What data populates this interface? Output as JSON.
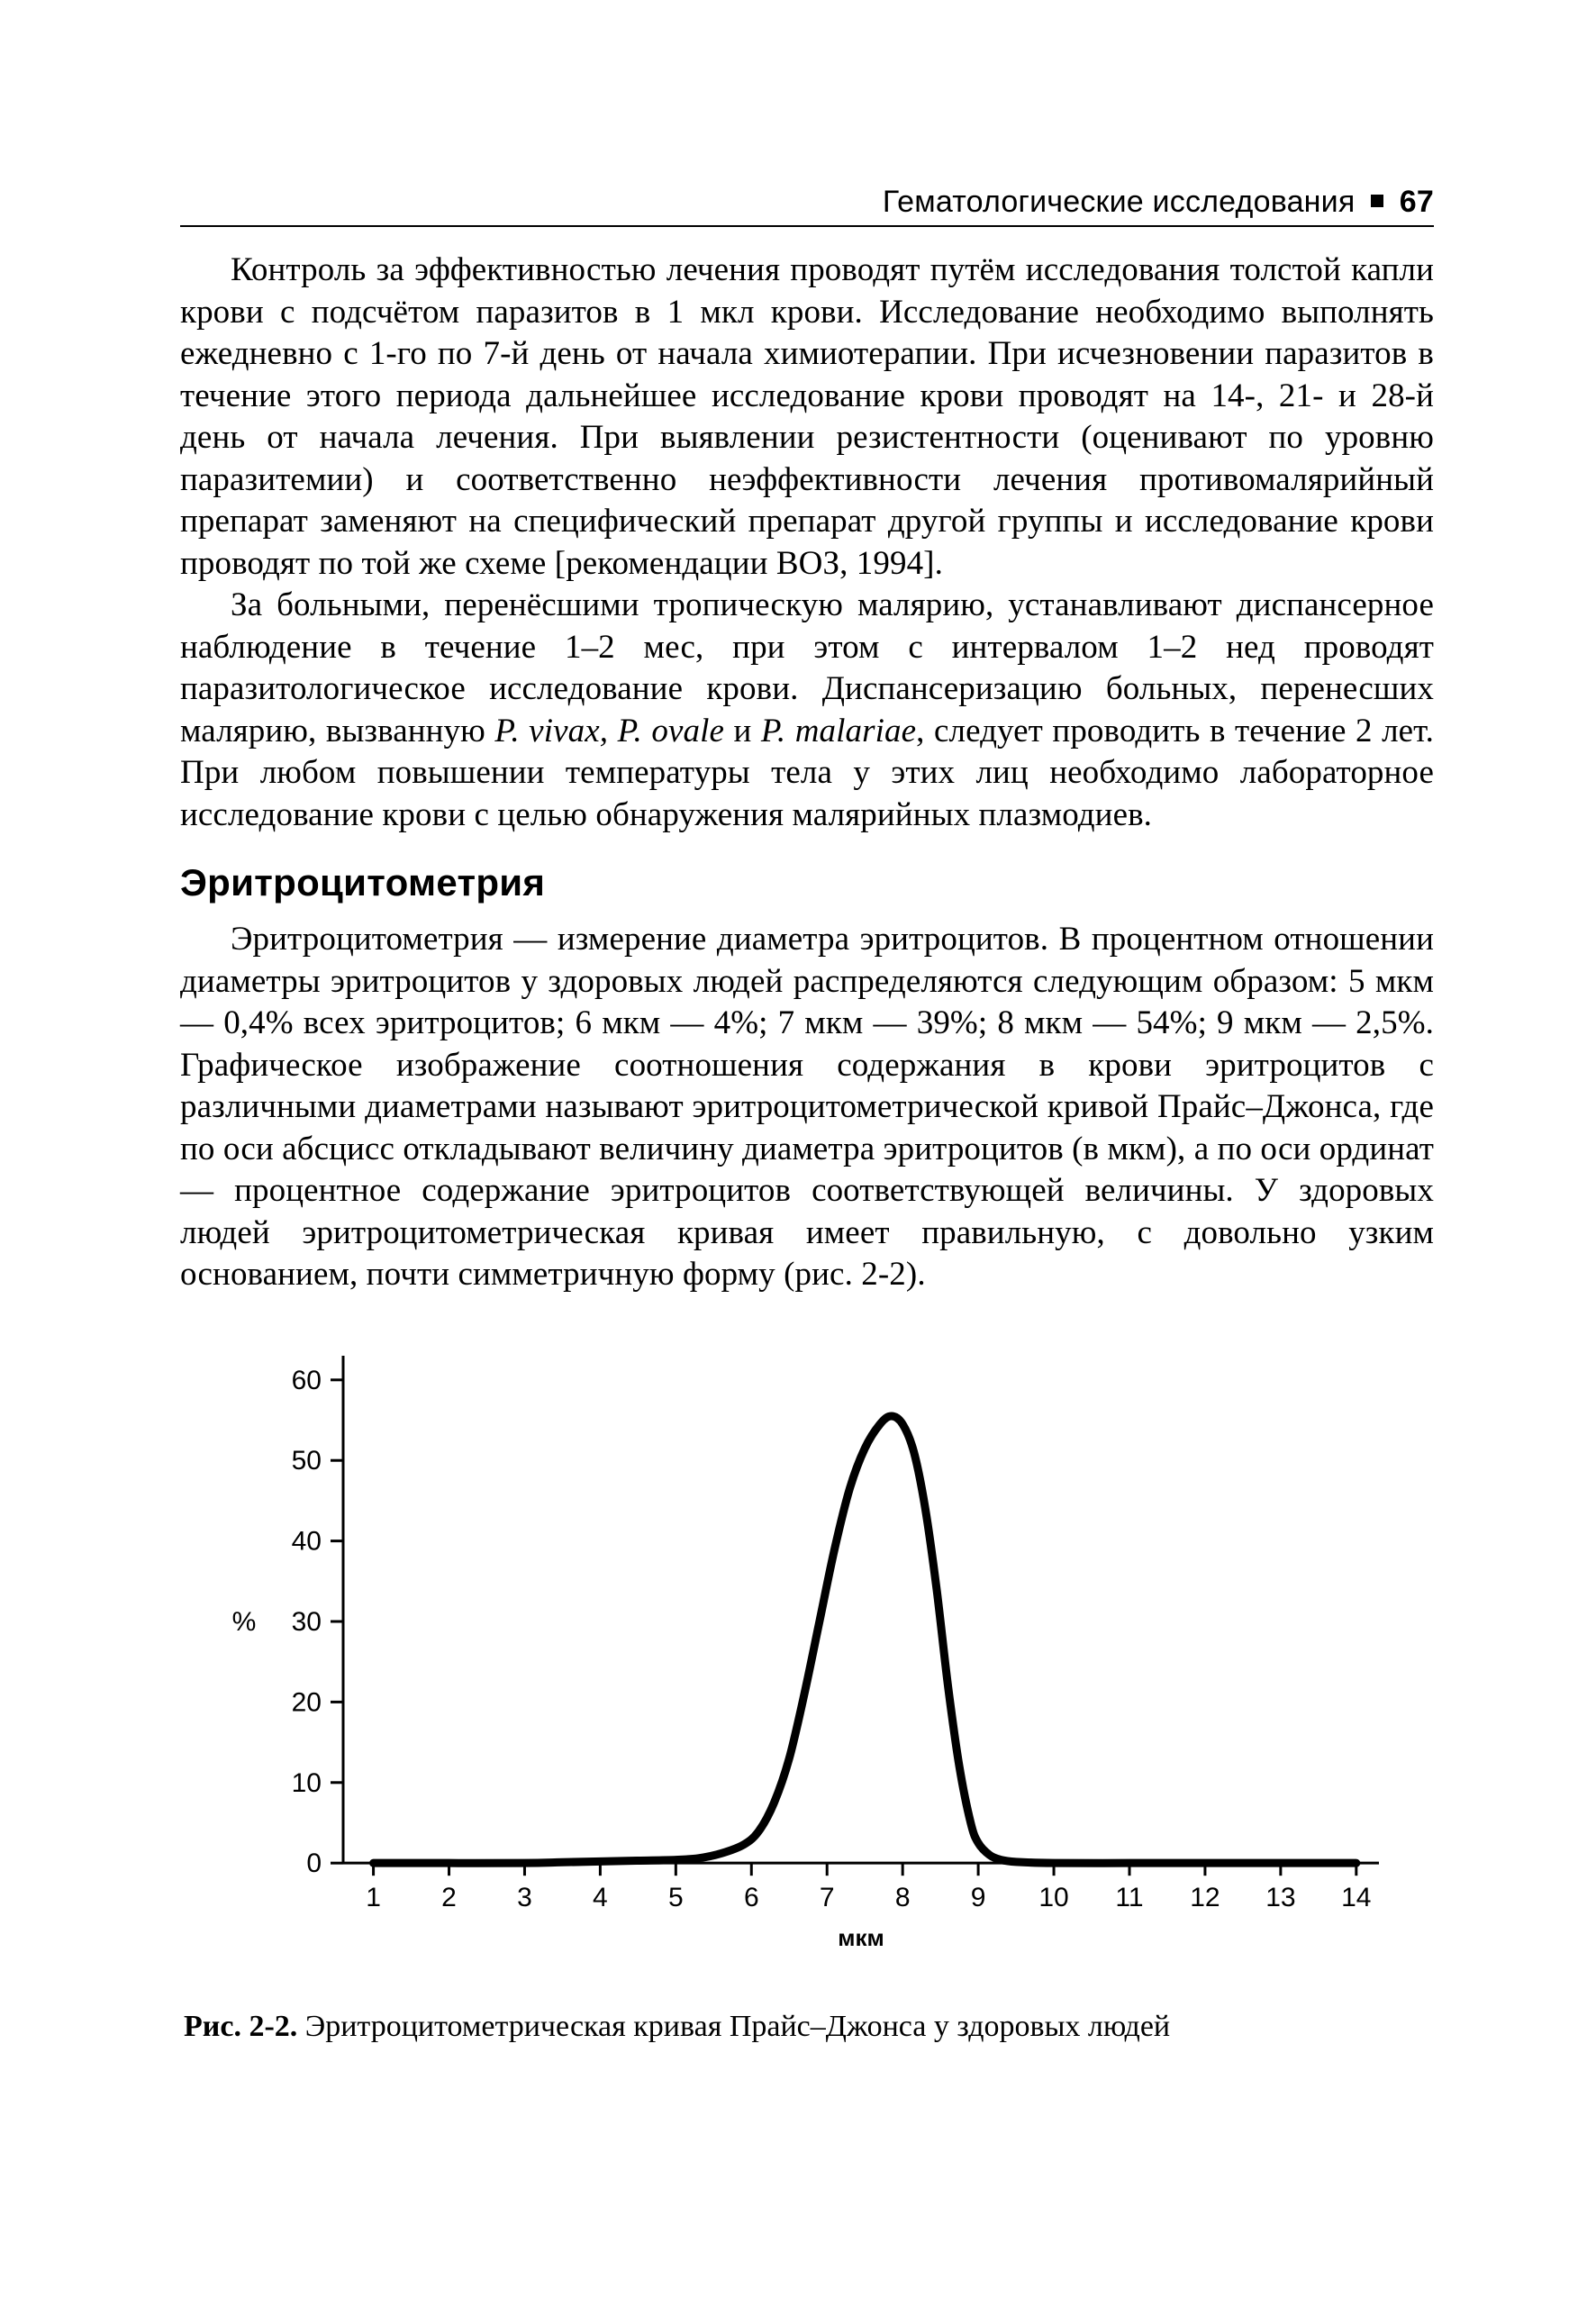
{
  "header": {
    "section_title": "Гематологические исследования",
    "page_number": "67"
  },
  "paragraphs": {
    "p1": "Контроль за эффективностью лечения проводят путём исследования толстой капли крови с подсчётом паразитов в 1 мкл крови. Исследование необходимо выполнять ежедневно с 1-го по 7-й день от начала химиотерапии. При исчезновении паразитов в течение этого периода дальнейшее исследование крови проводят на 14-, 21- и 28-й день от начала лечения. При выявлении резистентности (оценивают по уровню паразитемии) и соответственно неэффективности лечения противомалярийный препарат заменяют на специфический препарат другой группы и исследование крови проводят по той же схеме [рекомендации ВОЗ, 1994].",
    "p2_a": "За больными, перенёсшими тропическую малярию, устанавливают диспансерное наблюдение в течение 1–2 мес, при этом с интервалом 1–2 нед проводят паразитологическое исследование крови. Диспансеризацию больных, перенесших малярию, вызванную ",
    "p2_species": "P. vivax, P. ovale",
    "p2_and": " и ",
    "p2_species2": "P. malariae",
    "p2_b": ", следует проводить в течение 2 лет. При любом повышении температуры тела у этих лиц необходимо лабораторное исследование крови с целью обнаружения малярийных плазмодиев.",
    "p3": "Эритроцитометрия — измерение диаметра эритроцитов. В процентном отношении диаметры эритроцитов у здоровых людей распределяются следующим образом: 5 мкм — 0,4% всех эритроцитов; 6 мкм — 4%; 7 мкм — 39%; 8 мкм — 54%; 9 мкм — 2,5%. Графическое изображение соотношения содержания в крови эритроцитов с различными диаметрами называют эритроцитометрической кривой Прайс–Джонса, где по оси абсцисс откладывают величину диаметра эритроцитов (в мкм), а по оси ординат — процентное содержание эритроцитов соответствующей величины. У здоровых людей эритроцитометрическая кривая имеет правильную, с довольно узким основанием, почти симметричную форму (рис. 2-2)."
  },
  "section_heading": "Эритроцитометрия",
  "figure": {
    "caption_label": "Рис. 2-2.",
    "caption_text": " Эритроцитометрическая кривая Прайс–Джонса у здоровых людей",
    "chart": {
      "type": "line",
      "x_title": "мкм",
      "y_title": "%",
      "xlim": [
        0.6,
        14.3
      ],
      "ylim": [
        -3,
        63
      ],
      "x_ticks": [
        1,
        2,
        3,
        4,
        5,
        6,
        7,
        8,
        9,
        10,
        11,
        12,
        13,
        14
      ],
      "y_ticks": [
        0,
        10,
        20,
        30,
        40,
        50,
        60
      ],
      "background_color": "#ffffff",
      "axis_color": "#000000",
      "axis_width": 3,
      "tick_length": 14,
      "tick_font_size": 30,
      "line_color": "#000000",
      "line_width": 9,
      "curve_points": [
        [
          1.0,
          0.0
        ],
        [
          2.0,
          0.0
        ],
        [
          3.0,
          0.0
        ],
        [
          3.5,
          0.1
        ],
        [
          4.0,
          0.2
        ],
        [
          4.5,
          0.3
        ],
        [
          5.0,
          0.4
        ],
        [
          5.3,
          0.6
        ],
        [
          5.6,
          1.2
        ],
        [
          5.9,
          2.3
        ],
        [
          6.1,
          4.0
        ],
        [
          6.3,
          7.5
        ],
        [
          6.5,
          13.0
        ],
        [
          6.7,
          21.0
        ],
        [
          6.9,
          30.0
        ],
        [
          7.1,
          39.0
        ],
        [
          7.3,
          46.5
        ],
        [
          7.5,
          51.5
        ],
        [
          7.7,
          54.5
        ],
        [
          7.85,
          55.5
        ],
        [
          8.0,
          54.5
        ],
        [
          8.15,
          51.0
        ],
        [
          8.3,
          44.0
        ],
        [
          8.45,
          34.0
        ],
        [
          8.6,
          22.0
        ],
        [
          8.75,
          12.0
        ],
        [
          8.9,
          5.0
        ],
        [
          9.0,
          2.5
        ],
        [
          9.15,
          1.0
        ],
        [
          9.3,
          0.4
        ],
        [
          9.5,
          0.15
        ],
        [
          10.0,
          0.0
        ],
        [
          11.0,
          0.0
        ],
        [
          12.0,
          0.0
        ],
        [
          13.0,
          0.0
        ],
        [
          14.0,
          0.0
        ]
      ]
    }
  }
}
